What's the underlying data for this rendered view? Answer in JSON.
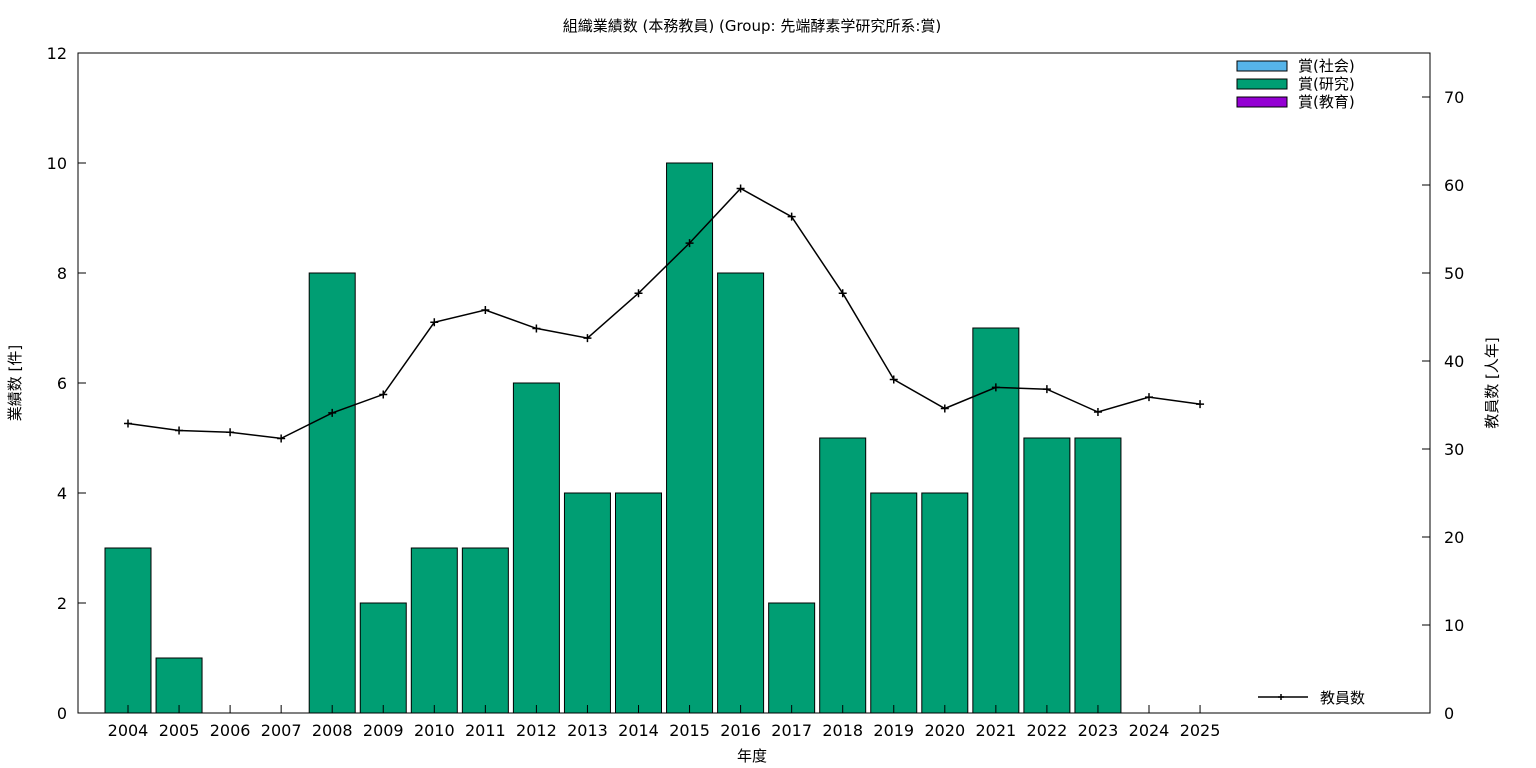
{
  "chart_data": {
    "type": "bar",
    "title": "組織業績数 (本務教員) (Group: 先端酵素学研究所系:賞)",
    "xlabel": "年度",
    "ylabel": "業績数 [件]",
    "y2label": "教員数 [人年]",
    "ylim": [
      0,
      12
    ],
    "y2lim": [
      0,
      75
    ],
    "yticks": [
      "0",
      "2",
      "4",
      "6",
      "8",
      "10",
      "12"
    ],
    "y2ticks": [
      "0",
      "10",
      "20",
      "30",
      "40",
      "50",
      "60",
      "70"
    ],
    "categories": [
      "2004",
      "2005",
      "2006",
      "2007",
      "2008",
      "2009",
      "2010",
      "2011",
      "2012",
      "2013",
      "2014",
      "2015",
      "2016",
      "2017",
      "2018",
      "2019",
      "2020",
      "2021",
      "2022",
      "2023",
      "2024",
      "2025"
    ],
    "series": [
      {
        "name": "賞(社会)",
        "color": "#56b4e9",
        "values": [
          0,
          0,
          0,
          0,
          0,
          0,
          0,
          0,
          0,
          0,
          0,
          0,
          0,
          0,
          0,
          0,
          0,
          0,
          0,
          0,
          0,
          0
        ]
      },
      {
        "name": "賞(研究)",
        "color": "#009e73",
        "values": [
          3,
          1,
          0,
          0,
          8,
          2,
          3,
          3,
          6,
          4,
          4,
          10,
          8,
          2,
          5,
          4,
          4,
          7,
          5,
          5,
          0,
          0
        ]
      },
      {
        "name": "賞(教育)",
        "color": "#9400d3",
        "values": [
          0,
          0,
          0,
          0,
          0,
          0,
          0,
          0,
          0,
          0,
          0,
          0,
          0,
          0,
          0,
          0,
          0,
          0,
          0,
          0,
          0,
          0
        ]
      }
    ],
    "line_series": {
      "name": "教員数",
      "axis": "right",
      "color": "#000000",
      "values": [
        32.9,
        32.1,
        31.9,
        31.2,
        34.1,
        36.2,
        44.4,
        45.8,
        43.7,
        42.6,
        47.7,
        53.4,
        59.6,
        56.4,
        47.7,
        37.9,
        34.6,
        37.0,
        36.8,
        34.2,
        35.9,
        35.1
      ]
    },
    "legend_position": "top-right",
    "line_legend_position": "bottom-right",
    "grid": false
  }
}
